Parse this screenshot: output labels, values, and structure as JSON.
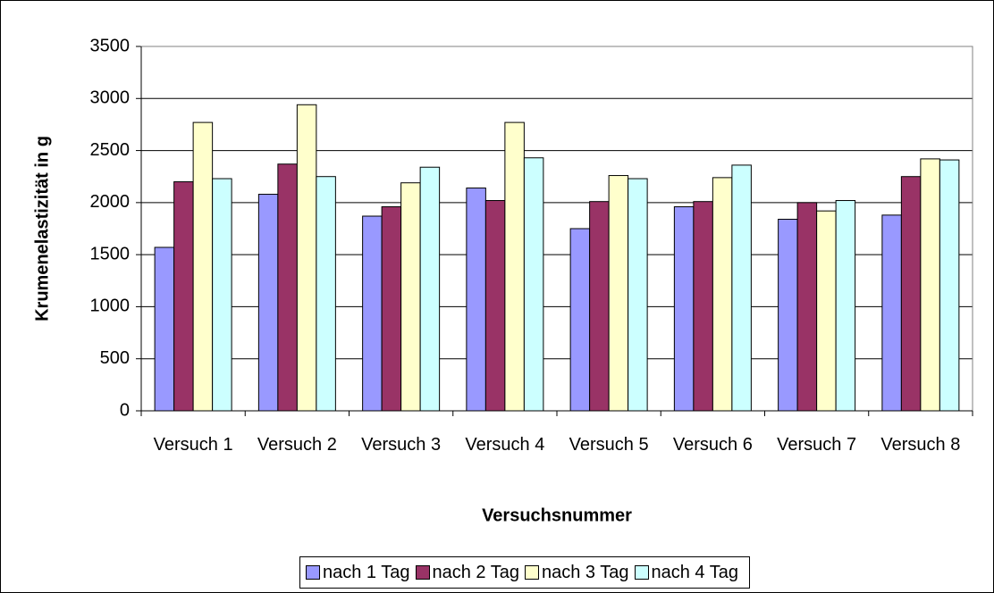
{
  "chart_data": {
    "type": "bar",
    "ylabel": "Krumenelastizität in g",
    "xlabel": "Versuchsnummer",
    "categories": [
      "Versuch 1",
      "Versuch 2",
      "Versuch 3",
      "Versuch 4",
      "Versuch 5",
      "Versuch 6",
      "Versuch 7",
      "Versuch 8"
    ],
    "series": [
      {
        "name": "nach 1 Tag",
        "color": "#9999ff",
        "values": [
          1570,
          2080,
          1870,
          2140,
          1750,
          1960,
          1840,
          1880
        ]
      },
      {
        "name": "nach 2 Tag",
        "color": "#993366",
        "values": [
          2200,
          2370,
          1960,
          2020,
          2010,
          2010,
          2000,
          2250
        ]
      },
      {
        "name": "nach 3 Tag",
        "color": "#ffffcc",
        "values": [
          2770,
          2940,
          2190,
          2770,
          2260,
          2240,
          1920,
          2420
        ]
      },
      {
        "name": "nach 4 Tag",
        "color": "#ccffff",
        "values": [
          2230,
          2250,
          2340,
          2430,
          2230,
          2360,
          2020,
          2410
        ]
      }
    ],
    "ylim": [
      0,
      3500
    ],
    "yticks": [
      0,
      500,
      1000,
      1500,
      2000,
      2500,
      3000,
      3500
    ],
    "grid": true,
    "legend": "bottom"
  }
}
